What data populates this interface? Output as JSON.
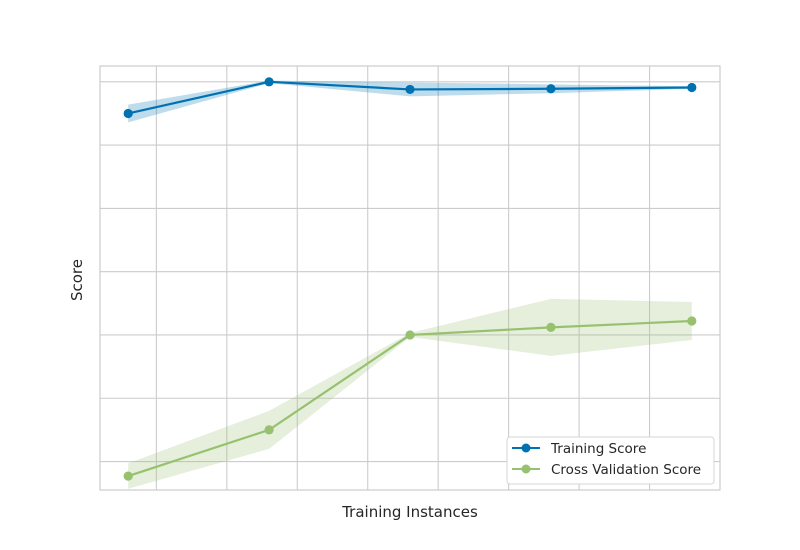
{
  "chart_data": {
    "type": "line",
    "title": "",
    "xlabel": "Training Instances",
    "ylabel": "Score",
    "x": [
      1,
      2,
      3,
      4,
      5
    ],
    "xlim": [
      0.8,
      5.2
    ],
    "ylim": [
      0.355,
      1.025
    ],
    "grid": true,
    "legend_position": "lower-right",
    "series": [
      {
        "name": "Training Score",
        "color": "#0072B2",
        "values": [
          0.95,
          1.0,
          0.988,
          0.989,
          0.991
        ],
        "band_upper": [
          0.964,
          1.002,
          0.999,
          0.996,
          0.993
        ],
        "band_lower": [
          0.936,
          0.998,
          0.977,
          0.982,
          0.989
        ]
      },
      {
        "name": "Cross Validation Score",
        "color": "#97C16F",
        "values": [
          0.377,
          0.45,
          0.6,
          0.612,
          0.622
        ],
        "band_upper": [
          0.397,
          0.48,
          0.603,
          0.657,
          0.652
        ],
        "band_lower": [
          0.357,
          0.42,
          0.597,
          0.567,
          0.592
        ]
      }
    ]
  }
}
